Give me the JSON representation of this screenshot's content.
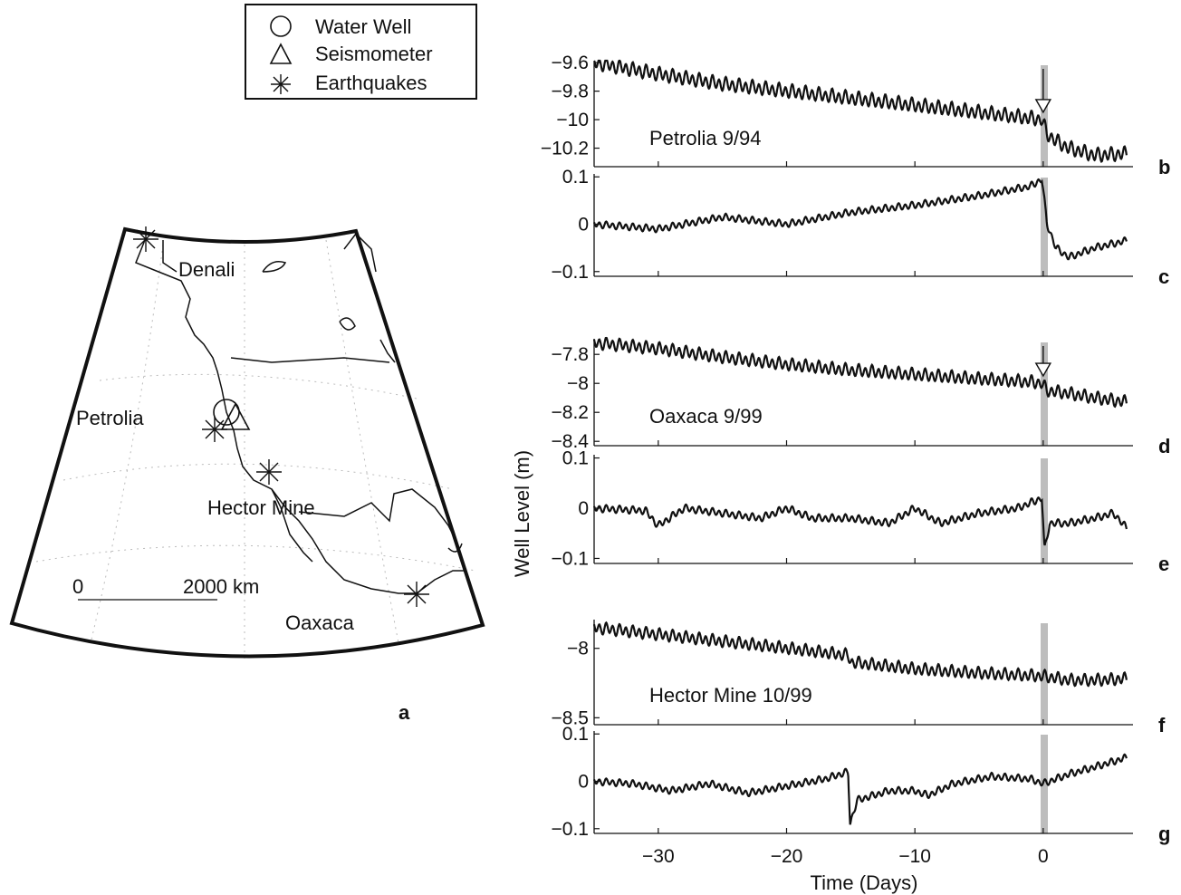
{
  "legend": {
    "items": [
      {
        "label": "Water Well",
        "icon": "circle-icon"
      },
      {
        "label": "Seismometer",
        "icon": "triangle-icon"
      },
      {
        "label": "Earthquakes",
        "icon": "asterisk-icon"
      }
    ]
  },
  "map": {
    "panel_letter": "a",
    "labels": {
      "denali": "Denali",
      "petrolia": "Petrolia",
      "hector": "Hector Mine",
      "oaxaca": "Oaxaca"
    },
    "scale_bar": {
      "zero": "0",
      "end": "2000 km"
    }
  },
  "axes": {
    "ylabel": "Well Level (m)",
    "xlabel": "Time (Days)",
    "xlim": [
      -35,
      7
    ],
    "xticks": [
      -30,
      -20,
      -10,
      0
    ],
    "xtick_labels": [
      "−30",
      "−20",
      "−10",
      "0"
    ]
  },
  "chart_data": [
    {
      "type": "line",
      "panel": "b",
      "title": "Petrolia 9/94",
      "ylim": [
        -10.33,
        -9.58
      ],
      "yticks": [
        -9.6,
        -9.8,
        -10,
        -10.2
      ],
      "ytick_labels": [
        "−9.6",
        "−9.8",
        "−10",
        "−10.2"
      ],
      "x": [
        -35,
        -30,
        -25,
        -20,
        -15,
        -10,
        -5,
        -1,
        -0.1,
        0.3,
        1,
        2,
        4,
        6.5
      ],
      "y": [
        -9.6,
        -9.68,
        -9.75,
        -9.8,
        -9.85,
        -9.9,
        -9.95,
        -9.99,
        -10.0,
        -10.1,
        -10.15,
        -10.2,
        -10.25,
        -10.24
      ],
      "osc_amp": 0.04,
      "event_marker": true
    },
    {
      "type": "line",
      "panel": "c",
      "ylim": [
        -0.11,
        0.11
      ],
      "yticks": [
        0.1,
        0,
        -0.1
      ],
      "ytick_labels": [
        "0.1",
        "0",
        "−0.1"
      ],
      "x": [
        -35,
        -30,
        -25,
        -20,
        -15,
        -10,
        -5,
        -1,
        -0.1,
        0.3,
        1,
        2,
        4,
        6.5
      ],
      "y": [
        0.0,
        -0.01,
        0.015,
        0.0,
        0.025,
        0.04,
        0.06,
        0.08,
        0.095,
        0.0,
        -0.05,
        -0.07,
        -0.05,
        -0.035
      ],
      "osc_amp": 0.006,
      "event_marker": false
    },
    {
      "type": "line",
      "panel": "d",
      "title": "Oaxaca 9/99",
      "ylim": [
        -8.43,
        -7.68
      ],
      "yticks": [
        -7.8,
        -8,
        -8.2,
        -8.4
      ],
      "ytick_labels": [
        "−7.8",
        "−8",
        "−8.2",
        "−8.4"
      ],
      "x": [
        -35,
        -30,
        -25,
        -20,
        -15,
        -10,
        -5,
        -1,
        -0.1,
        0.3,
        2,
        4,
        6.5
      ],
      "y": [
        -7.72,
        -7.76,
        -7.82,
        -7.87,
        -7.91,
        -7.94,
        -7.97,
        -7.99,
        -8.0,
        -8.05,
        -8.07,
        -8.1,
        -8.13
      ],
      "osc_amp": 0.035,
      "event_marker": true
    },
    {
      "type": "line",
      "panel": "e",
      "ylim": [
        -0.11,
        0.11
      ],
      "yticks": [
        0.1,
        0,
        -0.1
      ],
      "ytick_labels": [
        "0.1",
        "0",
        "−0.1"
      ],
      "x": [
        -35,
        -31,
        -30,
        -28,
        -25,
        -22,
        -20,
        -18,
        -15,
        -12,
        -10,
        -8,
        -5,
        -2,
        -0.1,
        0.1,
        0.5,
        2,
        4,
        5.5,
        6.5
      ],
      "y": [
        0.0,
        -0.005,
        -0.035,
        0.0,
        -0.01,
        -0.02,
        0.0,
        -0.02,
        -0.02,
        -0.03,
        0.0,
        -0.03,
        -0.01,
        0.0,
        0.02,
        -0.085,
        -0.03,
        -0.03,
        -0.02,
        -0.01,
        -0.04
      ],
      "osc_amp": 0.006,
      "event_marker": false
    },
    {
      "type": "line",
      "panel": "f",
      "title": "Hector Mine 10/99",
      "ylim": [
        -8.55,
        -7.78
      ],
      "yticks": [
        -8,
        -8.5
      ],
      "ytick_labels": [
        "−8",
        "−8.5"
      ],
      "x": [
        -35,
        -30,
        -25,
        -20,
        -15.2,
        -15,
        -10,
        -5,
        0,
        2,
        4,
        6.5
      ],
      "y": [
        -7.85,
        -7.9,
        -7.95,
        -8.0,
        -8.05,
        -8.1,
        -8.15,
        -8.18,
        -8.2,
        -8.23,
        -8.23,
        -8.22
      ],
      "osc_amp": 0.035,
      "event_marker": false
    },
    {
      "type": "line",
      "panel": "g",
      "ylim": [
        -0.11,
        0.11
      ],
      "yticks": [
        0.1,
        0,
        -0.1
      ],
      "ytick_labels": [
        "0.1",
        "0",
        "−0.1"
      ],
      "x": [
        -35,
        -32,
        -29,
        -26,
        -23,
        -20,
        -17,
        -15.2,
        -15.05,
        -14.5,
        -12,
        -10,
        -9,
        -7,
        -4,
        -1,
        0,
        2,
        4,
        6.5
      ],
      "y": [
        0.0,
        -0.005,
        -0.02,
        -0.005,
        -0.025,
        -0.01,
        0.005,
        0.02,
        -0.09,
        -0.04,
        -0.02,
        -0.02,
        -0.03,
        -0.005,
        0.01,
        0.005,
        -0.005,
        0.015,
        0.03,
        0.05
      ],
      "osc_amp": 0.006,
      "event_marker": false
    }
  ]
}
